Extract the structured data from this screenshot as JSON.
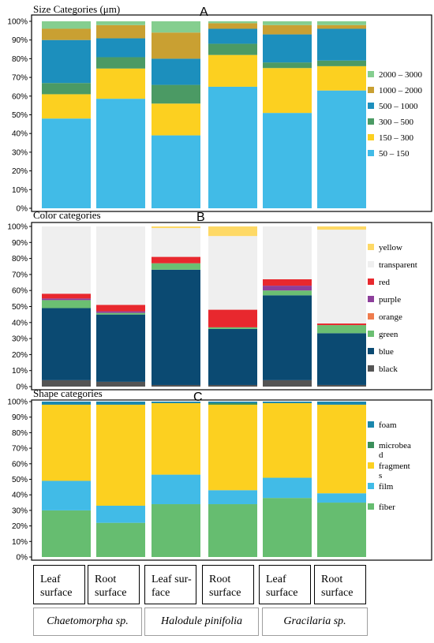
{
  "chart_data": [
    {
      "type": "bar",
      "stacked": true,
      "title": "Size Categories (μm)",
      "panel_letter": "A",
      "ylim": [
        0,
        100
      ],
      "yticks": [
        "0%",
        "10%",
        "20%",
        "30%",
        "40%",
        "50%",
        "60%",
        "70%",
        "80%",
        "90%",
        "100%"
      ],
      "legend_position": "right",
      "gridlines": false,
      "series": [
        {
          "name": "50 – 150",
          "color": "#41bbe7",
          "values": [
            48,
            58,
            39,
            65,
            51,
            63
          ]
        },
        {
          "name": "150 – 300",
          "color": "#fcd020",
          "values": [
            13,
            16,
            17,
            17,
            24,
            13
          ]
        },
        {
          "name": "300 – 500",
          "color": "#4b9a64",
          "values": [
            6,
            6,
            10,
            6,
            3,
            3
          ]
        },
        {
          "name": "500 – 1000",
          "color": "#1c8fbd",
          "values": [
            23,
            10,
            14,
            8,
            15,
            17
          ]
        },
        {
          "name": "1000 – 2000",
          "color": "#c9a032",
          "values": [
            6,
            7,
            14,
            3,
            5,
            2
          ]
        },
        {
          "name": "2000 – 3000",
          "color": "#85ce8f",
          "values": [
            4,
            2,
            6,
            1,
            2,
            2
          ]
        }
      ]
    },
    {
      "type": "bar",
      "stacked": true,
      "title": "Color categories",
      "panel_letter": "B",
      "ylim": [
        0,
        100
      ],
      "yticks": [
        "0%",
        "10%",
        "20%",
        "30%",
        "40%",
        "50%",
        "60%",
        "70%",
        "80%",
        "90%",
        "100%"
      ],
      "legend_position": "right",
      "gridlines": false,
      "series": [
        {
          "name": "black",
          "color": "#545454",
          "values": [
            4,
            3,
            1,
            1,
            4,
            1
          ]
        },
        {
          "name": "blue",
          "color": "#0b4a72",
          "values": [
            45,
            42,
            72,
            35,
            53,
            32
          ]
        },
        {
          "name": "green",
          "color": "#6bbf72",
          "values": [
            5,
            1,
            4,
            1,
            3,
            5
          ]
        },
        {
          "name": "orange",
          "color": "#ef7c4d",
          "values": [
            0,
            0,
            0,
            0,
            0,
            0
          ]
        },
        {
          "name": "purple",
          "color": "#8d3f9b",
          "values": [
            1,
            1,
            0,
            0,
            3,
            0
          ]
        },
        {
          "name": "red",
          "color": "#e8282e",
          "values": [
            3,
            4,
            4,
            11,
            4,
            1
          ]
        },
        {
          "name": "transparent",
          "color": "#efefef",
          "values": [
            42,
            49,
            18,
            46,
            33,
            58
          ]
        },
        {
          "name": "yellow",
          "color": "#fed966",
          "values": [
            0,
            0,
            1,
            6,
            0,
            2
          ]
        }
      ]
    },
    {
      "type": "bar",
      "stacked": true,
      "title": "Shape categories",
      "panel_letter": "C",
      "ylim": [
        0,
        100
      ],
      "yticks": [
        "0%",
        "10%",
        "20%",
        "30%",
        "40%",
        "50%",
        "60%",
        "70%",
        "80%",
        "90%",
        "100%"
      ],
      "legend_position": "right",
      "gridlines": false,
      "series": [
        {
          "name": "fiber",
          "color": "#66bd70",
          "values": [
            30,
            22,
            34,
            34,
            38,
            35
          ]
        },
        {
          "name": "film",
          "color": "#41bbe7",
          "values": [
            19,
            11,
            19,
            9,
            13,
            6
          ]
        },
        {
          "name": "fragments",
          "color": "#fcd020",
          "values": [
            49,
            65,
            46,
            55,
            48,
            57
          ]
        },
        {
          "name": "microbead",
          "color": "#3b8f5a",
          "values": [
            0,
            0,
            0,
            1,
            0,
            0
          ]
        },
        {
          "name": "foam",
          "color": "#1a87ad",
          "values": [
            2,
            2,
            1,
            1,
            1,
            2
          ]
        }
      ]
    }
  ],
  "category_labels": [
    [
      "Leaf",
      "surface"
    ],
    [
      "Root",
      "surface"
    ],
    [
      "Leaf sur-",
      "face"
    ],
    [
      "Root",
      "surface"
    ],
    [
      "Leaf",
      "surface"
    ],
    [
      "Root",
      "surface"
    ]
  ],
  "species": [
    "Chaetomorpha sp.",
    "Halodule pinifolia",
    "Gracilaria sp."
  ]
}
